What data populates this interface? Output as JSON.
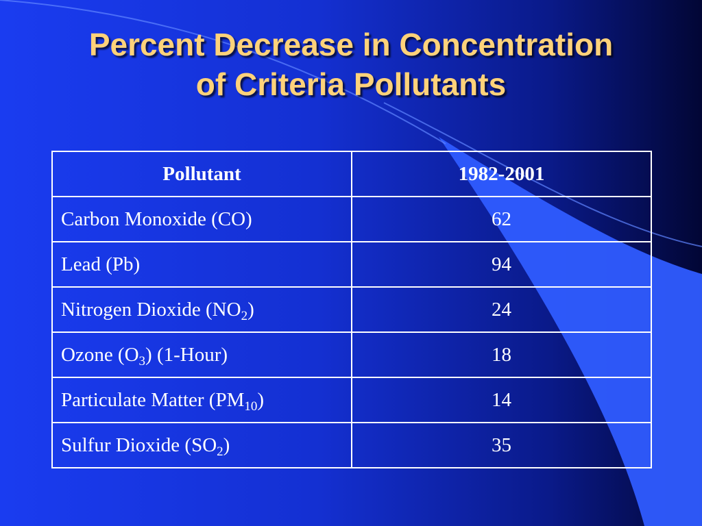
{
  "slide": {
    "title_line1": "Percent Decrease in Concentration",
    "title_line2": "of Criteria Pollutants"
  },
  "table": {
    "headers": [
      "Pollutant",
      "1982-2001"
    ],
    "rows": [
      {
        "name": "Carbon Monoxide (CO)",
        "name_pre": "Carbon Monoxide (CO)",
        "sub": "",
        "name_post": "",
        "value": "62"
      },
      {
        "name": "Lead (Pb)",
        "name_pre": "Lead (Pb)",
        "sub": "",
        "name_post": "",
        "value": "94"
      },
      {
        "name": "Nitrogen Dioxide (NO2)",
        "name_pre": "Nitrogen Dioxide (NO",
        "sub": "2",
        "name_post": ")",
        "value": "24"
      },
      {
        "name": "Ozone (O3) (1-Hour)",
        "name_pre": "Ozone (O",
        "sub": "3",
        "name_post": ") (1-Hour)",
        "value": "18"
      },
      {
        "name": "Particulate Matter (PM10)",
        "name_pre": "Particulate Matter (PM",
        "sub": "10",
        "name_post": ")",
        "value": "14"
      },
      {
        "name": "Sulfur Dioxide (SO2)",
        "name_pre": "Sulfur Dioxide (SO",
        "sub": "2",
        "name_post": ")",
        "value": "35"
      }
    ]
  },
  "colors": {
    "background": "#1a3cf0",
    "title": "#ffd27a",
    "table_border": "#ffffff",
    "wave_accent": "#2f5cff"
  }
}
